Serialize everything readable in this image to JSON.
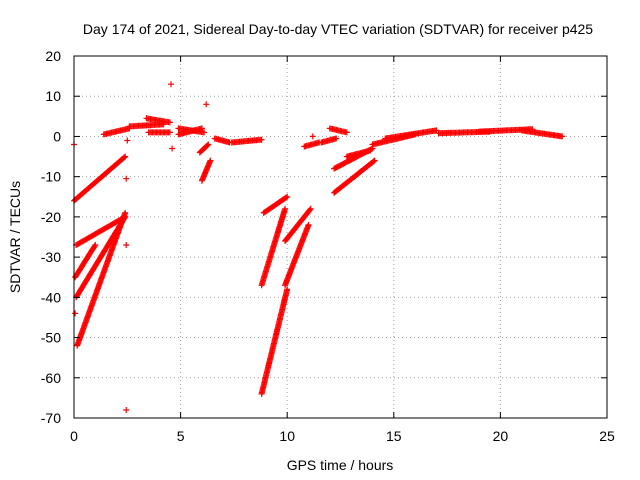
{
  "chart_data": {
    "type": "scatter",
    "title": "Day 174 of 2021, Sidereal Day-to-day VTEC variation (SDTVAR) for receiver p425",
    "xlabel": "GPS time / hours",
    "ylabel": "SDTVAR / TECUs",
    "xlim": [
      0,
      25
    ],
    "ylim": [
      -70,
      20
    ],
    "xticks": [
      "0",
      "5",
      "10",
      "15",
      "20",
      "25"
    ],
    "yticks": [
      "20",
      "10",
      "0",
      "-10",
      "-20",
      "-30",
      "-40",
      "-50",
      "-60",
      "-70"
    ],
    "marker": "+",
    "grid": true,
    "series": [
      {
        "name": "SDTVAR",
        "color": "#ff0000",
        "segments": [
          {
            "x": [
              0.0,
              2.4
            ],
            "y": [
              -16,
              -5
            ]
          },
          {
            "x": [
              0.1,
              2.4
            ],
            "y": [
              -27,
              -20
            ]
          },
          {
            "x": [
              0.05,
              1.0
            ],
            "y": [
              -35,
              -27
            ]
          },
          {
            "x": [
              0.1,
              2.4
            ],
            "y": [
              -40,
              -20
            ]
          },
          {
            "x": [
              0.15,
              2.4
            ],
            "y": [
              -52,
              -19
            ]
          },
          {
            "x": [
              1.4,
              2.6
            ],
            "y": [
              0.5,
              2.0
            ]
          },
          {
            "x": [
              2.6,
              4.2
            ],
            "y": [
              2.5,
              3.0
            ]
          },
          {
            "x": [
              3.4,
              4.5
            ],
            "y": [
              4.5,
              3.5
            ]
          },
          {
            "x": [
              3.5,
              4.5
            ],
            "y": [
              1.0,
              1.0
            ]
          },
          {
            "x": [
              4.9,
              6.1
            ],
            "y": [
              2.0,
              1.0
            ]
          },
          {
            "x": [
              4.9,
              6.0
            ],
            "y": [
              0.5,
              2.0
            ]
          },
          {
            "x": [
              5.9,
              6.3
            ],
            "y": [
              -4,
              -2
            ]
          },
          {
            "x": [
              6.0,
              6.4
            ],
            "y": [
              -11,
              -6
            ]
          },
          {
            "x": [
              6.6,
              7.3
            ],
            "y": [
              -0.5,
              -1.5
            ]
          },
          {
            "x": [
              7.4,
              8.8
            ],
            "y": [
              -1.5,
              -0.8
            ]
          },
          {
            "x": [
              8.9,
              10.0
            ],
            "y": [
              -19,
              -15
            ]
          },
          {
            "x": [
              8.8,
              9.9
            ],
            "y": [
              -37,
              -18
            ]
          },
          {
            "x": [
              8.8,
              10.0
            ],
            "y": [
              -64,
              -38
            ]
          },
          {
            "x": [
              9.9,
              11.1
            ],
            "y": [
              -26,
              -18
            ]
          },
          {
            "x": [
              9.9,
              11.0
            ],
            "y": [
              -37,
              -22
            ]
          },
          {
            "x": [
              10.8,
              11.5
            ],
            "y": [
              -2.5,
              -1.5
            ]
          },
          {
            "x": [
              11.6,
              12.3
            ],
            "y": [
              -1.5,
              -0.5
            ]
          },
          {
            "x": [
              12.0,
              12.8
            ],
            "y": [
              2.0,
              1.0
            ]
          },
          {
            "x": [
              12.2,
              14.0
            ],
            "y": [
              -8,
              -3
            ]
          },
          {
            "x": [
              12.2,
              14.1
            ],
            "y": [
              -14,
              -6
            ]
          },
          {
            "x": [
              12.8,
              13.9
            ],
            "y": [
              -5,
              -3.5
            ]
          },
          {
            "x": [
              14.0,
              16.0
            ],
            "y": [
              -2.0,
              0.5
            ]
          },
          {
            "x": [
              14.6,
              17.0
            ],
            "y": [
              -0.5,
              1.5
            ]
          },
          {
            "x": [
              17.1,
              19.5
            ],
            "y": [
              0.8,
              1.2
            ]
          },
          {
            "x": [
              19.0,
              21.5
            ],
            "y": [
              1.2,
              1.8
            ]
          },
          {
            "x": [
              21.0,
              22.9
            ],
            "y": [
              1.5,
              0.0
            ]
          }
        ],
        "outliers": [
          {
            "x": 0.0,
            "y": -2
          },
          {
            "x": 0.05,
            "y": -44
          },
          {
            "x": 2.45,
            "y": -10.5
          },
          {
            "x": 2.45,
            "y": -27
          },
          {
            "x": 2.45,
            "y": -68
          },
          {
            "x": 2.5,
            "y": -1
          },
          {
            "x": 4.55,
            "y": 13
          },
          {
            "x": 4.6,
            "y": -3
          },
          {
            "x": 6.2,
            "y": 8
          },
          {
            "x": 11.2,
            "y": 0
          }
        ]
      }
    ]
  }
}
